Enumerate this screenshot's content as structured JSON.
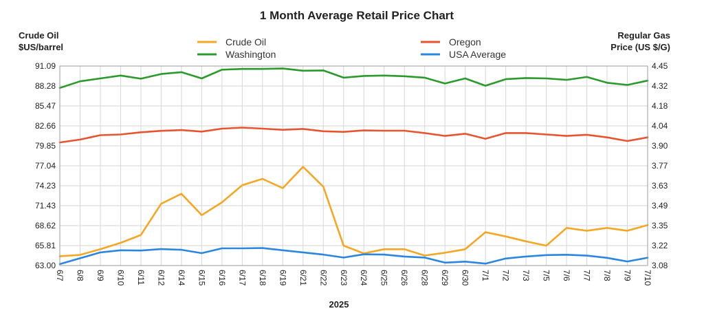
{
  "chart_data": {
    "type": "line",
    "title": "1 Month Average Retail Price Chart",
    "y_left_label": [
      "Crude Oil",
      "$US/barrel"
    ],
    "y_right_label": [
      "Regular Gas",
      "Price (US $/G)"
    ],
    "xlabel": "2025",
    "categories": [
      "6/7",
      "6/8",
      "6/9",
      "6/10",
      "6/11",
      "6/12",
      "6/14",
      "6/15",
      "6/16",
      "6/17",
      "6/18",
      "6/19",
      "6/21",
      "6/22",
      "6/23",
      "6/24",
      "6/25",
      "6/26",
      "6/28",
      "6/29",
      "6/30",
      "7/1",
      "7/2",
      "7/3",
      "7/5",
      "7/6",
      "7/7",
      "7/8",
      "7/9",
      "7/10"
    ],
    "y_left_ticks": [
      "91.09",
      "88.28",
      "85.47",
      "82.66",
      "79.85",
      "77.04",
      "74.23",
      "71.43",
      "68.62",
      "65.81",
      "63.00"
    ],
    "y_right_ticks": [
      "4.45",
      "4.32",
      "4.18",
      "4.04",
      "3.90",
      "3.77",
      "3.63",
      "3.49",
      "3.35",
      "3.22",
      "3.08"
    ],
    "y_left_range": [
      63.0,
      91.09
    ],
    "y_right_range": [
      3.08,
      4.45
    ],
    "grid": true,
    "legend_placement": "top",
    "series": [
      {
        "name": "Crude Oil",
        "axis": "left",
        "color": "#f5a623",
        "values": [
          64.3,
          64.5,
          65.3,
          66.2,
          67.3,
          71.7,
          73.1,
          70.1,
          71.9,
          74.3,
          75.2,
          73.9,
          76.9,
          74.1,
          65.8,
          64.7,
          65.3,
          65.3,
          64.4,
          64.8,
          65.3,
          67.7,
          67.1,
          66.4,
          65.8,
          68.3,
          67.9,
          68.3,
          67.9,
          68.7
        ]
      },
      {
        "name": "Oregon",
        "axis": "right",
        "color": "#e8542f",
        "values": [
          3.925,
          3.945,
          3.975,
          3.98,
          3.995,
          4.005,
          4.01,
          4.0,
          4.02,
          4.027,
          4.02,
          4.012,
          4.018,
          4.002,
          3.998,
          4.008,
          4.006,
          4.006,
          3.99,
          3.97,
          3.985,
          3.95,
          3.99,
          3.99,
          3.98,
          3.97,
          3.978,
          3.96,
          3.935,
          3.96
        ]
      },
      {
        "name": "Washington",
        "axis": "right",
        "color": "#2a9a2a",
        "values": [
          4.3,
          4.345,
          4.365,
          4.385,
          4.363,
          4.395,
          4.408,
          4.365,
          4.425,
          4.43,
          4.43,
          4.433,
          4.418,
          4.42,
          4.37,
          4.382,
          4.385,
          4.38,
          4.37,
          4.33,
          4.365,
          4.315,
          4.36,
          4.368,
          4.365,
          4.355,
          4.375,
          4.335,
          4.32,
          4.35
        ]
      },
      {
        "name": "USA Average",
        "axis": "right",
        "color": "#2b86e0",
        "values": [
          3.09,
          3.13,
          3.17,
          3.185,
          3.183,
          3.193,
          3.188,
          3.165,
          3.198,
          3.198,
          3.2,
          3.185,
          3.17,
          3.155,
          3.135,
          3.157,
          3.155,
          3.142,
          3.135,
          3.1,
          3.107,
          3.093,
          3.128,
          3.142,
          3.152,
          3.154,
          3.148,
          3.133,
          3.108,
          3.134
        ]
      }
    ],
    "legend": [
      {
        "name": "Crude Oil",
        "color": "#f5a623"
      },
      {
        "name": "Washington",
        "color": "#2a9a2a"
      },
      {
        "name": "Oregon",
        "color": "#e8542f"
      },
      {
        "name": "USA Average",
        "color": "#2b86e0"
      }
    ]
  }
}
